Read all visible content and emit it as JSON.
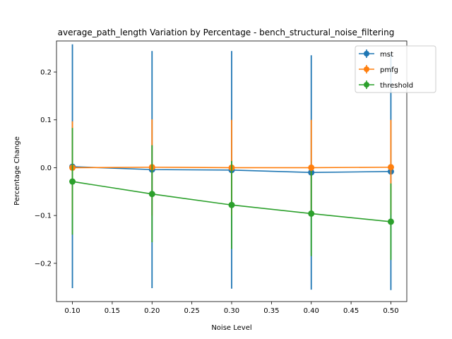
{
  "chart_data": {
    "type": "line",
    "title": "average_path_length Variation by Percentage - bench_structural_noise_filtering",
    "xlabel": "Noise Level",
    "ylabel": "Percentage Change",
    "xlim": [
      0.08,
      0.52
    ],
    "ylim": [
      -0.28,
      0.265
    ],
    "x_ticks": [
      "0.10",
      "0.15",
      "0.20",
      "0.25",
      "0.30",
      "0.35",
      "0.40",
      "0.45",
      "0.50"
    ],
    "y_ticks": [
      "−0.2",
      "−0.1",
      "0.0",
      "0.1",
      "0.2"
    ],
    "legend_position": "top-right",
    "grid": false,
    "x": [
      0.1,
      0.2,
      0.3,
      0.4,
      0.5
    ],
    "series": [
      {
        "name": "mst",
        "color": "#1f77b4",
        "values": [
          0.002,
          -0.004,
          -0.005,
          -0.01,
          -0.008
        ],
        "err_low": [
          -0.252,
          -0.252,
          -0.253,
          -0.255,
          -0.256
        ],
        "err_high": [
          0.258,
          0.244,
          0.244,
          0.235,
          0.24
        ]
      },
      {
        "name": "pmfg",
        "color": "#ff7f0e",
        "values": [
          0.0,
          0.001,
          0.0,
          0.0,
          0.001
        ],
        "err_low": [
          -0.097,
          -0.1,
          -0.1,
          -0.1,
          -0.098
        ],
        "err_high": [
          0.097,
          0.101,
          0.1,
          0.1,
          0.1
        ]
      },
      {
        "name": "threshold",
        "color": "#2ca02c",
        "values": [
          -0.029,
          -0.055,
          -0.078,
          -0.096,
          -0.113
        ],
        "err_low": [
          -0.14,
          -0.156,
          -0.17,
          -0.185,
          -0.193
        ],
        "err_high": [
          0.083,
          0.047,
          0.014,
          -0.007,
          -0.033
        ]
      }
    ]
  }
}
